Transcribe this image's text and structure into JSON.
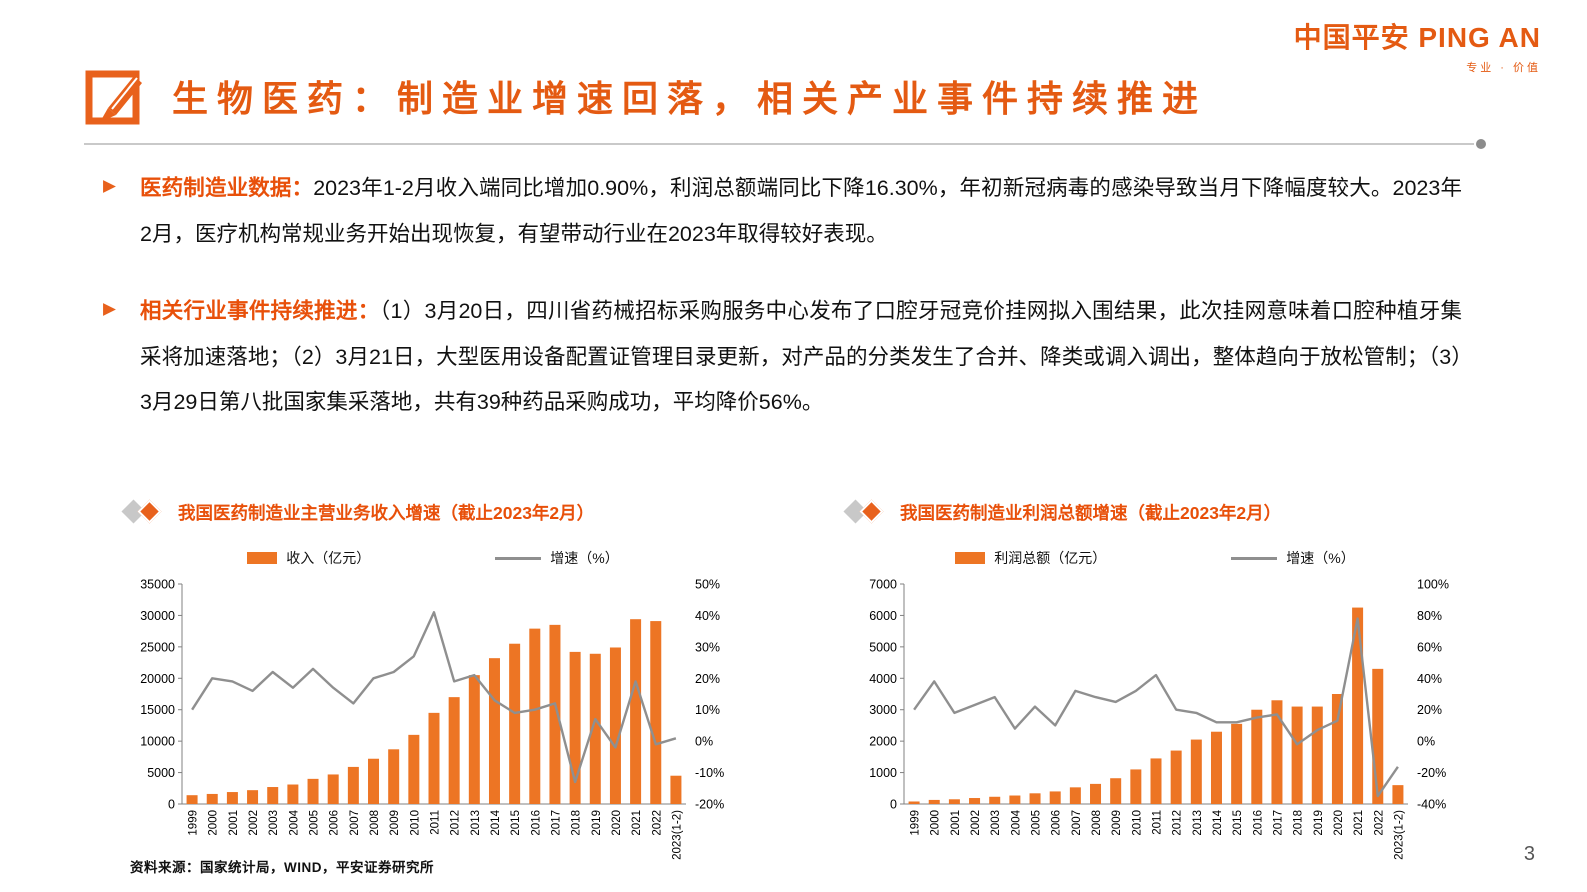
{
  "logo": {
    "zh": "中国平安",
    "en": "PING AN",
    "tagline": "专业 · 价值"
  },
  "title": "生物医药：制造业增速回落，相关产业事件持续推进",
  "bullets": [
    {
      "lead": "医药制造业数据：",
      "text": "2023年1-2月收入端同比增加0.90%，利润总额端同比下降16.30%，年初新冠病毒的感染导致当月下降幅度较大。2023年2月，医疗机构常规业务开始出现恢复，有望带动行业在2023年取得较好表现。"
    },
    {
      "lead": "相关行业事件持续推进：",
      "text": "（1）3月20日，四川省药械招标采购服务中心发布了口腔牙冠竞价挂网拟入围结果，此次挂网意味着口腔种植牙集采将加速落地；（2）3月21日，大型医用设备配置证管理目录更新，对产品的分类发生了合并、降类或调入调出，整体趋向于放松管制；（3）3月29日第八批国家集采落地，共有39种药品采购成功，平均降价56%。"
    }
  ],
  "source": "资料来源：国家统计局，WIND，平安证券研究所",
  "page_number": "3",
  "colors": {
    "accent": "#E45A12",
    "bar": "#ED7524",
    "line": "#8F8F8F"
  },
  "chart_data": [
    {
      "type": "bar",
      "title": "我国医药制造业主营业务收入增速（截止2023年2月）",
      "categories": [
        "1999",
        "2000",
        "2001",
        "2002",
        "2003",
        "2004",
        "2005",
        "2006",
        "2007",
        "2008",
        "2009",
        "2010",
        "2011",
        "2012",
        "2013",
        "2014",
        "2015",
        "2016",
        "2017",
        "2018",
        "2019",
        "2020",
        "2021",
        "2022",
        "2023(1-2)"
      ],
      "series": [
        {
          "name": "收入（亿元）",
          "type": "bar",
          "axis": "left",
          "values": [
            1400,
            1600,
            1900,
            2200,
            2700,
            3100,
            4000,
            4700,
            5900,
            7200,
            8700,
            11000,
            14500,
            17000,
            20500,
            23200,
            25500,
            27900,
            28500,
            24200,
            23900,
            24900,
            29400,
            29100,
            4500
          ]
        },
        {
          "name": "增速（%）",
          "type": "line",
          "axis": "right",
          "values": [
            10,
            20,
            19,
            16,
            22,
            17,
            23,
            17,
            12,
            20,
            22,
            27,
            41,
            19,
            21,
            13,
            9,
            10,
            12,
            -13,
            7,
            -2,
            19,
            -1,
            0.9
          ]
        }
      ],
      "left_axis": {
        "min": 0,
        "max": 35000,
        "step": 5000
      },
      "right_axis": {
        "min": -20,
        "max": 50,
        "step": 10,
        "suffix": "%"
      },
      "grid": false,
      "legend_position": "top"
    },
    {
      "type": "bar",
      "title": "我国医药制造业利润总额增速（截止2023年2月）",
      "categories": [
        "1999",
        "2000",
        "2001",
        "2002",
        "2003",
        "2004",
        "2005",
        "2006",
        "2007",
        "2008",
        "2009",
        "2010",
        "2011",
        "2012",
        "2013",
        "2014",
        "2015",
        "2016",
        "2017",
        "2018",
        "2019",
        "2020",
        "2021",
        "2022",
        "2023(1-2)"
      ],
      "series": [
        {
          "name": "利润总额（亿元）",
          "type": "bar",
          "axis": "left",
          "values": [
            80,
            130,
            150,
            190,
            230,
            270,
            340,
            400,
            530,
            640,
            820,
            1100,
            1450,
            1700,
            2050,
            2300,
            2550,
            3000,
            3300,
            3100,
            3100,
            3500,
            6250,
            4300,
            600
          ]
        },
        {
          "name": "增速（%）",
          "type": "line",
          "axis": "right",
          "values": [
            20,
            38,
            18,
            23,
            28,
            8,
            22,
            10,
            32,
            28,
            25,
            32,
            42,
            20,
            18,
            12,
            12,
            15,
            17,
            -2,
            7,
            13,
            78,
            -35,
            -16.3
          ]
        }
      ],
      "left_axis": {
        "min": 0,
        "max": 7000,
        "step": 1000
      },
      "right_axis": {
        "min": -40,
        "max": 100,
        "step": 20,
        "suffix": "%"
      },
      "grid": false,
      "legend_position": "top"
    }
  ]
}
